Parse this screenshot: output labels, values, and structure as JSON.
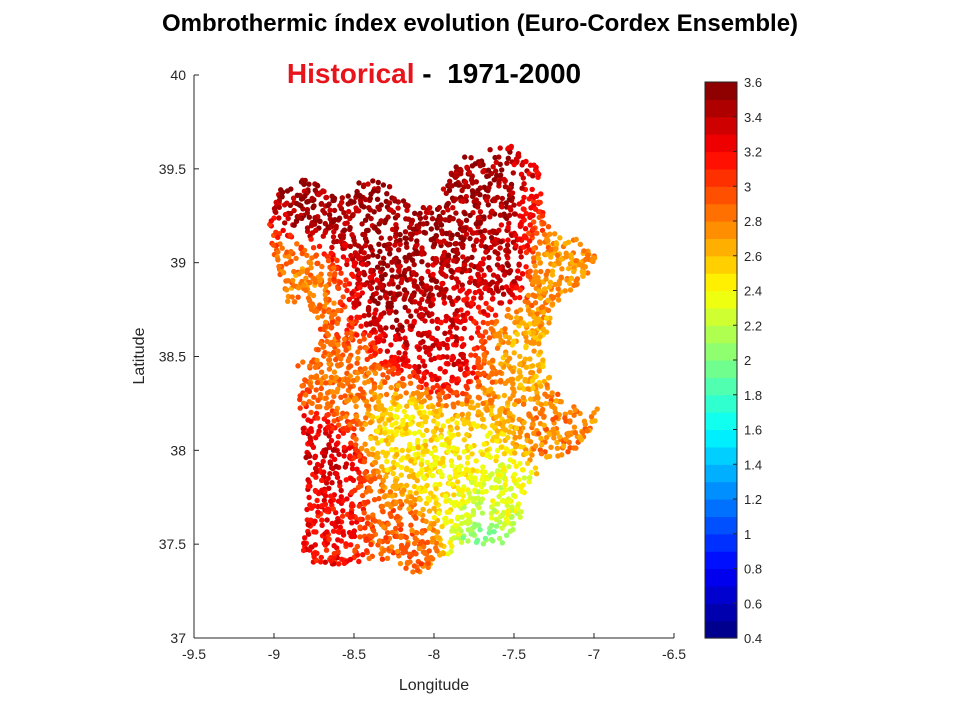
{
  "title": "Ombrothermic índex evolution (Euro-Cordex Ensemble)",
  "subtitle": {
    "period_label": "Historical",
    "separator": " -  ",
    "years": "1971-2000"
  },
  "chart_data": {
    "type": "scatter",
    "xlabel": "Longitude",
    "ylabel": "Latitude",
    "xlim": [
      -9.5,
      -6.5
    ],
    "ylim": [
      37,
      40
    ],
    "xticks": [
      -9.5,
      -9,
      -8.5,
      -8,
      -7.5,
      -7,
      -6.5
    ],
    "yticks": [
      37,
      37.5,
      38,
      38.5,
      39,
      39.5,
      40
    ],
    "colorbar": {
      "range": [
        0.4,
        3.6
      ],
      "levels": 32,
      "colormap": "jet",
      "ticks": [
        3.6,
        3.4,
        3.2,
        3,
        2.8,
        2.6,
        2.4,
        2.2,
        2,
        1.8,
        1.6,
        1.4,
        1.2,
        1,
        0.8,
        0.6,
        0.4
      ],
      "placement": "right"
    },
    "regions": [
      {
        "lon": -8.7,
        "lat": 39.3,
        "value": 3.5
      },
      {
        "lon": -8.3,
        "lat": 39.25,
        "value": 3.5
      },
      {
        "lon": -7.8,
        "lat": 39.3,
        "value": 3.5
      },
      {
        "lon": -7.6,
        "lat": 39.0,
        "value": 3.4
      },
      {
        "lon": -8.2,
        "lat": 38.8,
        "value": 3.45
      },
      {
        "lon": -8.0,
        "lat": 38.55,
        "value": 3.3
      },
      {
        "lon": -8.85,
        "lat": 38.9,
        "value": 2.8
      },
      {
        "lon": -7.25,
        "lat": 38.95,
        "value": 2.75
      },
      {
        "lon": -7.4,
        "lat": 38.55,
        "value": 2.65
      },
      {
        "lon": -8.55,
        "lat": 38.35,
        "value": 2.85
      },
      {
        "lon": -8.2,
        "lat": 38.1,
        "value": 2.5
      },
      {
        "lon": -7.9,
        "lat": 37.9,
        "value": 2.45
      },
      {
        "lon": -7.6,
        "lat": 37.7,
        "value": 2.3
      },
      {
        "lon": -7.65,
        "lat": 37.55,
        "value": 2.05
      },
      {
        "lon": -8.7,
        "lat": 37.95,
        "value": 3.3
      },
      {
        "lon": -8.7,
        "lat": 37.55,
        "value": 3.2
      },
      {
        "lon": -8.2,
        "lat": 37.5,
        "value": 2.9
      },
      {
        "lon": -7.2,
        "lat": 38.1,
        "value": 2.8
      }
    ]
  }
}
